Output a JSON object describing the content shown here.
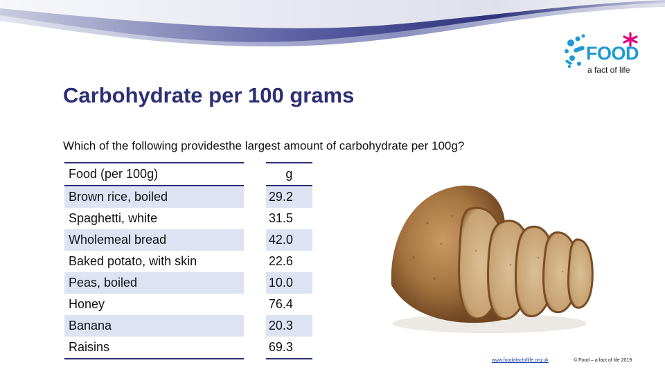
{
  "logo": {
    "word": "FOOD",
    "tagline": "a fact of life"
  },
  "slide": {
    "title": "Carbohydrate per 100 grams",
    "question": "Which of the following providesthe largest amount of carbohydrate per 100g?"
  },
  "table": {
    "headers": {
      "food": "Food (per 100g)",
      "value": "g"
    },
    "rows": [
      {
        "food": "Brown rice, boiled",
        "value": "29.2"
      },
      {
        "food": "Spaghetti, white",
        "value": "31.5"
      },
      {
        "food": "Wholemeal bread",
        "value": "42.0"
      },
      {
        "food": "Baked potato, with skin",
        "value": "22.6"
      },
      {
        "food": "Peas, boiled",
        "value": "10.0"
      },
      {
        "food": "Honey",
        "value": "76.4"
      },
      {
        "food": "Banana",
        "value": "20.3"
      },
      {
        "food": "Raisins",
        "value": "69.3"
      }
    ]
  },
  "image": {
    "subject": "sliced-wholemeal-bread-loaf"
  },
  "footer": {
    "url": "www.foodafactoflife.org.uk",
    "copyright": "© Food – a fact of life 2019"
  },
  "colors": {
    "title": "#2b2f74",
    "row_shade": "#dde3f3",
    "rule": "#2b2f74",
    "logo_blue": "#1d9ad6",
    "logo_pink": "#e6007e"
  }
}
